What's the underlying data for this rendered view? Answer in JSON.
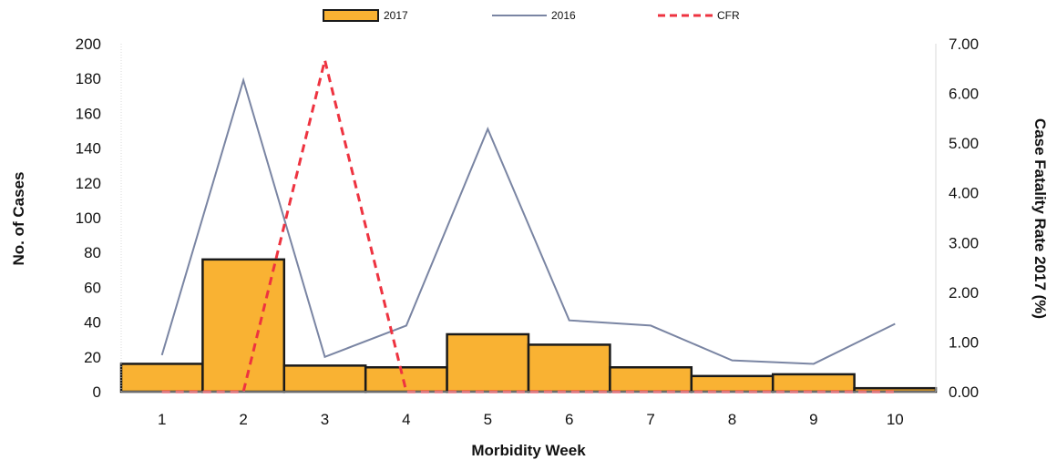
{
  "chart_data": {
    "type": "bar",
    "categories": [
      "1",
      "2",
      "3",
      "4",
      "5",
      "6",
      "7",
      "8",
      "9",
      "10"
    ],
    "series": [
      {
        "name": "2017",
        "kind": "bar",
        "axis": "left",
        "color": "#F9B233",
        "values": [
          16,
          76,
          15,
          14,
          33,
          27,
          14,
          9,
          10,
          2
        ]
      },
      {
        "name": "2016",
        "kind": "line",
        "axis": "left",
        "color": "#7A85A3",
        "values": [
          21,
          179,
          20,
          38,
          151,
          41,
          38,
          18,
          16,
          39
        ]
      },
      {
        "name": "CFR",
        "kind": "dashed-line",
        "axis": "right",
        "color": "#EE3340",
        "values": [
          0,
          0,
          6.67,
          0,
          0,
          0,
          0,
          0,
          0,
          0
        ]
      }
    ],
    "xlabel": "Morbidity Week",
    "ylabel": "No. of Cases",
    "y2label": "Case Fatality Rate 2017 (%)",
    "ylim": [
      0,
      200
    ],
    "y2lim": [
      0,
      7
    ],
    "yticks": [
      "0",
      "20",
      "40",
      "60",
      "80",
      "100",
      "120",
      "140",
      "160",
      "180",
      "200"
    ],
    "y2ticks": [
      "0.00",
      "1.00",
      "2.00",
      "3.00",
      "4.00",
      "5.00",
      "6.00",
      "7.00"
    ],
    "legend": [
      "2017",
      "2016",
      "CFR"
    ],
    "legend_position": "top-center",
    "grid": false
  }
}
